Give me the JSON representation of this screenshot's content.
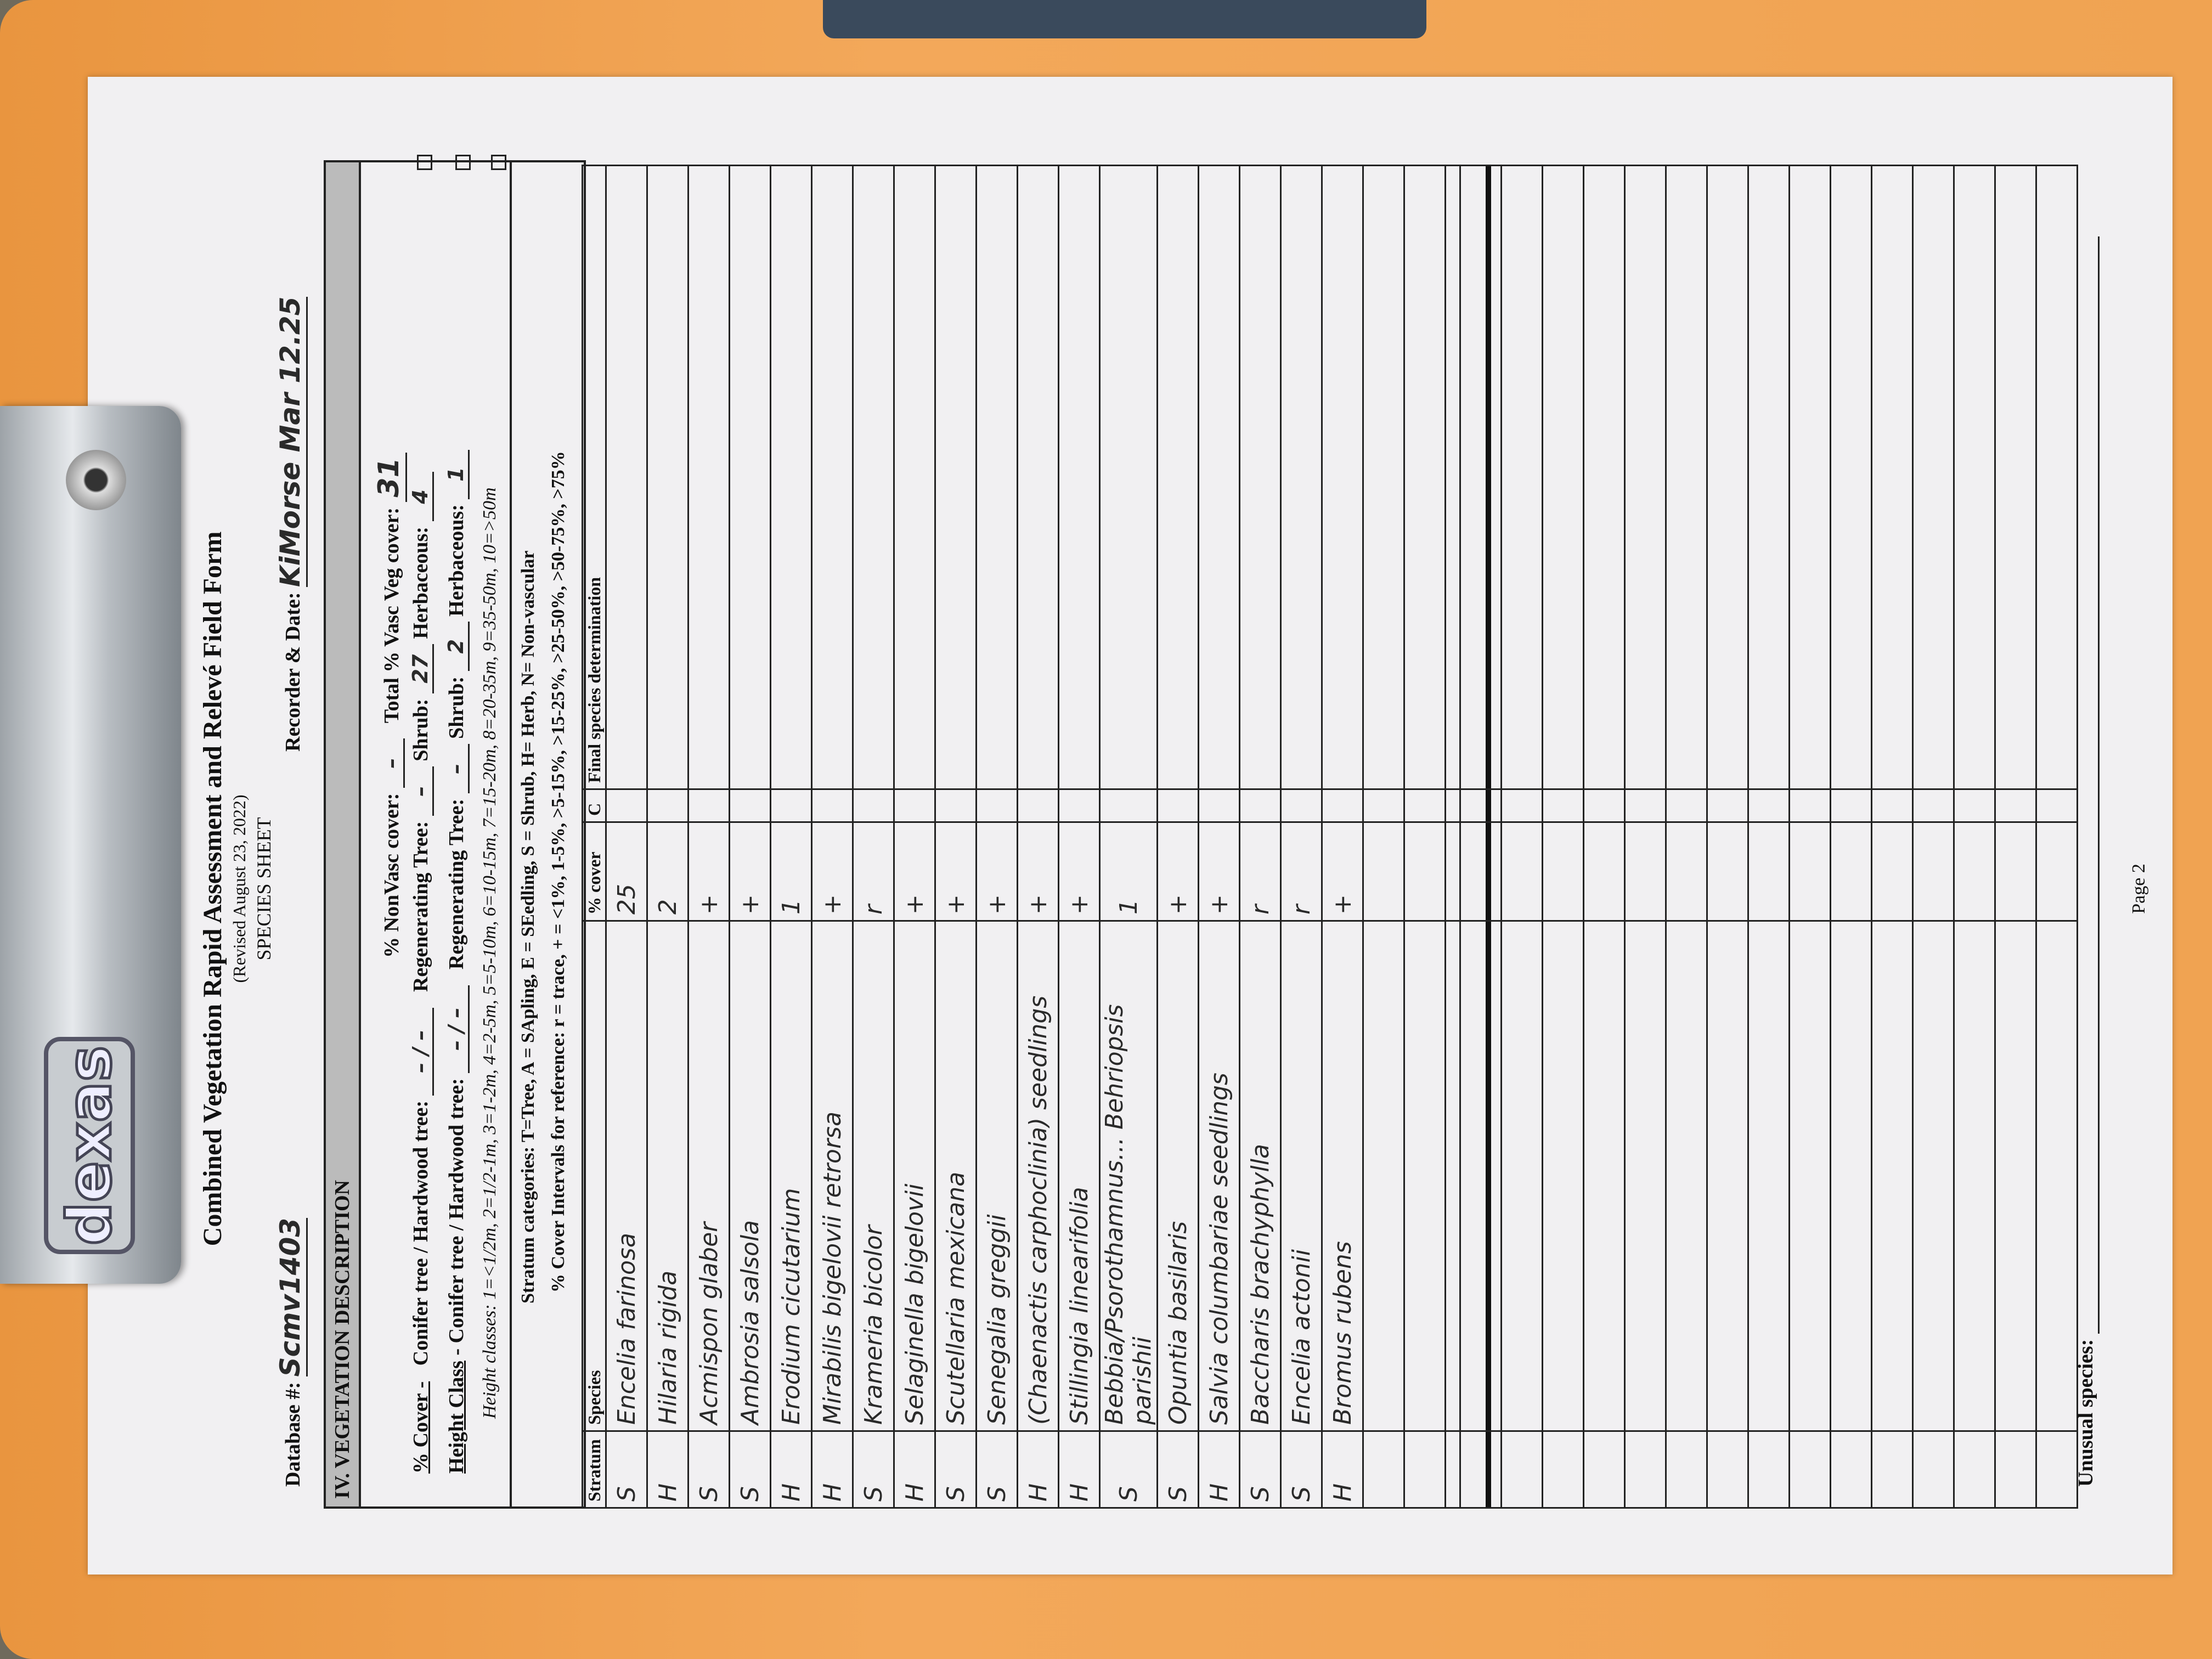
{
  "clipboard": {
    "brand": "dexas"
  },
  "form": {
    "title": "Combined Vegetation Rapid Assessment and Relevé Field Form",
    "revised": "(Revised August 23, 2022)",
    "sheet": "SPECIES SHEET",
    "database_label": "Database #:",
    "database_value": "Scmv1403",
    "recorder_label": "Recorder & Date:",
    "recorder_value": "KiMorse Mar 12.25",
    "section_title": "IV.  VEGETATION DESCRIPTION",
    "nonvasc_label": "% NonVasc cover:",
    "nonvasc_value": "–",
    "total_label": "Total % Vasc Veg cover:",
    "total_value": "31",
    "cover_label": "% Cover -",
    "height_label": "Height Class",
    "conifer_label": "Conifer tree / Hardwood tree:",
    "regen_label": "Regenerating Tree:",
    "shrub_label": "Shrub:",
    "herb_label": "Herbaceous:",
    "cover_values": {
      "conifer_hardwood": "– / –",
      "regen": "–",
      "shrub": "27",
      "herb": "4"
    },
    "height_values": {
      "conifer_hardwood": "– / –",
      "regen": "–",
      "shrub": "2",
      "herb": "1"
    },
    "height_classes": "Height classes: 1=<1/2m, 2=1/2-1m, 3=1-2m, 4=2-5m, 5=5-10m, 6=10-15m, 7=15-20m, 8=20-35m, 9=35-50m, 10=>50m",
    "stratum_categories": "Stratum categories: T=Tree, A = SApling, E = SEedling, S = Shrub, H= Herb, N= Non-vascular",
    "cover_intervals": "% Cover Intervals for reference: r = trace,  + = <1%,  1-5%,  >5-15%,  >15-25%,  >25-50%,  >50-75%,  >75%",
    "columns": [
      "Stratum",
      "Species",
      "% cover",
      "C",
      "Final species determination"
    ],
    "rows": [
      {
        "stratum": "S",
        "species": "Encelia farinosa",
        "cover": "25"
      },
      {
        "stratum": "H",
        "species": "Hilaria rigida",
        "cover": "2"
      },
      {
        "stratum": "S",
        "species": "Acmispon glaber",
        "cover": "+"
      },
      {
        "stratum": "S",
        "species": "Ambrosia salsola",
        "cover": "+"
      },
      {
        "stratum": "H",
        "species": "Erodium cicutarium",
        "cover": "1"
      },
      {
        "stratum": "H",
        "species": "Mirabilis bigelovii retrorsa",
        "cover": "+"
      },
      {
        "stratum": "S",
        "species": "Krameria bicolor",
        "cover": "r"
      },
      {
        "stratum": "H",
        "species": "Selaginella bigelovii",
        "cover": "+"
      },
      {
        "stratum": "S",
        "species": "Scutellaria mexicana",
        "cover": "+"
      },
      {
        "stratum": "S",
        "species": "Senegalia greggii",
        "cover": "+"
      },
      {
        "stratum": "H",
        "species": "(Chaenactis carphoclinia) seedlings",
        "cover": "+"
      },
      {
        "stratum": "H",
        "species": "Stillingia linearifolia",
        "cover": "+"
      },
      {
        "stratum": "S",
        "species": "Bebbia/Psorothamnus... Behriopsis parishii",
        "cover": "1"
      },
      {
        "stratum": "S",
        "species": "Opuntia basilaris",
        "cover": "+"
      },
      {
        "stratum": "H",
        "species": "Salvia columbariae  seedlings",
        "cover": "+"
      },
      {
        "stratum": "S",
        "species": "Baccharis brachyphylla",
        "cover": "r"
      },
      {
        "stratum": "S",
        "species": "Encelia actonii",
        "cover": "r"
      },
      {
        "stratum": "H",
        "species": "Bromus rubens",
        "cover": "+"
      }
    ],
    "unusual_label": "Unusual species:",
    "page": "Page 2"
  }
}
